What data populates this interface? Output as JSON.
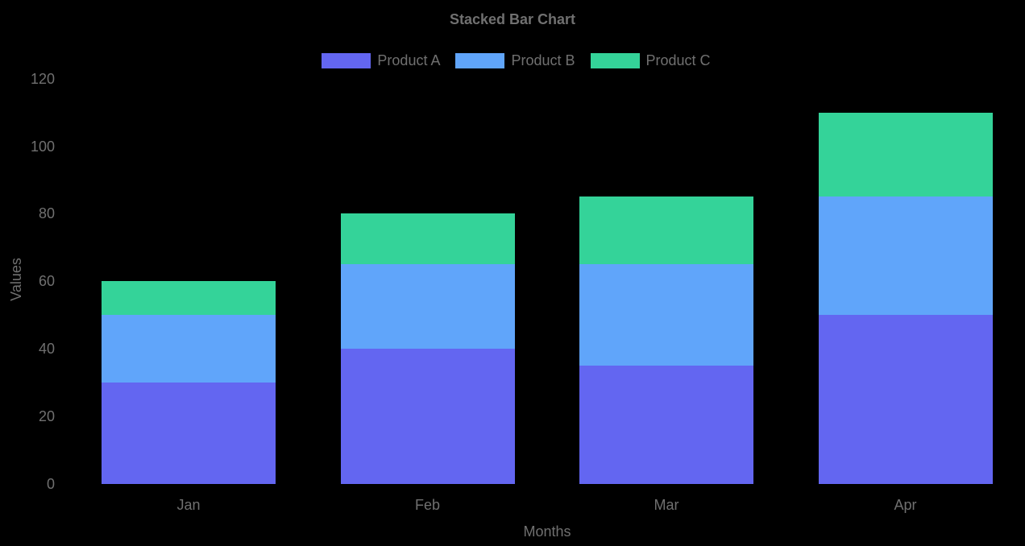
{
  "chart_data": {
    "type": "bar",
    "stacked": true,
    "title": "Stacked Bar Chart",
    "xlabel": "Months",
    "ylabel": "Values",
    "categories": [
      "Jan",
      "Feb",
      "Mar",
      "Apr"
    ],
    "series": [
      {
        "name": "Product A",
        "color": "#6366f1",
        "values": [
          30,
          40,
          35,
          50
        ]
      },
      {
        "name": "Product B",
        "color": "#60a5fa",
        "values": [
          20,
          25,
          30,
          35
        ]
      },
      {
        "name": "Product C",
        "color": "#34d399",
        "values": [
          10,
          15,
          20,
          25
        ]
      }
    ],
    "ylim": [
      0,
      120
    ],
    "yticks": [
      0,
      20,
      40,
      60,
      80,
      100,
      120
    ],
    "legend_position": "top",
    "grid": false,
    "background_color": "#000000",
    "text_color": "#707070"
  }
}
